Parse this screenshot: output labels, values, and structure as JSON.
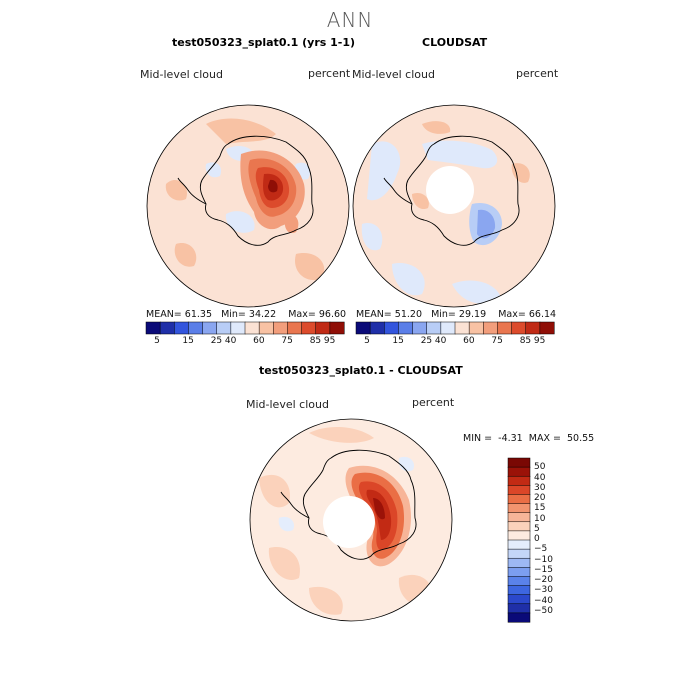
{
  "figure_title": "ANN",
  "colors": {
    "abs_scale": [
      "#0a0a78",
      "#1f2fa8",
      "#3355dd",
      "#5a7ee8",
      "#8aa6f0",
      "#b8cdf6",
      "#dfe9fb",
      "#fbe2d4",
      "#f8c2a4",
      "#f29e7c",
      "#e9764f",
      "#dc4b2c",
      "#c02a15",
      "#8f0e06"
    ],
    "diff_scale": [
      "#0a0a78",
      "#1f2fa8",
      "#2b48cc",
      "#3d66e0",
      "#5a82ea",
      "#7c9ef0",
      "#9db8f4",
      "#c4d6f8",
      "#e4edfc",
      "#fdebe0",
      "#fbd2bb",
      "#f7b598",
      "#f2946f",
      "#ea6e45",
      "#db4628",
      "#c22a14",
      "#9b1208",
      "#7a0804"
    ],
    "land_outline": "#000000"
  },
  "chart_data": [
    {
      "type": "heatmap",
      "projection": "south-polar-stereographic",
      "title": "test050323_splat0.1 (yrs 1-1)",
      "variable": "Mid-level cloud",
      "units": "percent",
      "stats": {
        "mean_label": "MEAN=",
        "mean": "61.35",
        "min_label": "Min=",
        "min": "34.22",
        "max_label": "Max=",
        "max": "96.60"
      },
      "colorbar_ticks": [
        "5",
        "15",
        "25",
        "40",
        "60",
        "75",
        "85",
        "95"
      ],
      "field_summary": {
        "background": "#fbe2d4",
        "core_max_region": "East Antarctic plateau"
      }
    },
    {
      "type": "heatmap",
      "projection": "south-polar-stereographic",
      "title": "CLOUDSAT",
      "variable": "Mid-level cloud",
      "units": "percent",
      "stats": {
        "mean_label": "MEAN=",
        "mean": "51.20",
        "min_label": "Min=",
        "min": "29.19",
        "max_label": "Max=",
        "max": "66.14"
      },
      "colorbar_ticks": [
        "5",
        "15",
        "25",
        "40",
        "60",
        "75",
        "85",
        "95"
      ],
      "missing_region": "pole"
    },
    {
      "type": "heatmap",
      "projection": "south-polar-stereographic",
      "title": "test050323_splat0.1 - CLOUDSAT",
      "variable": "Mid-level cloud",
      "units": "percent",
      "stats": {
        "min_label": "MIN =",
        "min": "-4.31",
        "max_label": "MAX =",
        "max": "50.55"
      },
      "colorbar_ticks": [
        "50",
        "40",
        "30",
        "20",
        "15",
        "10",
        "5",
        "0",
        "−5",
        "−10",
        "−15",
        "−20",
        "−30",
        "−40",
        "−50"
      ],
      "missing_region": "pole"
    }
  ]
}
